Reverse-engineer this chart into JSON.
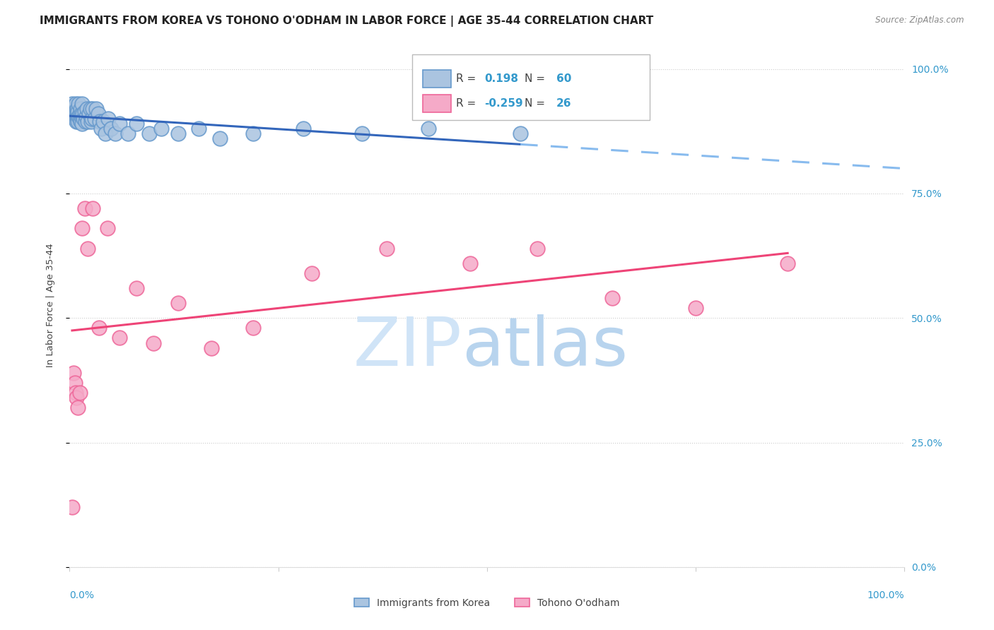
{
  "title": "IMMIGRANTS FROM KOREA VS TOHONO O'ODHAM IN LABOR FORCE | AGE 35-44 CORRELATION CHART",
  "source": "Source: ZipAtlas.com",
  "ylabel": "In Labor Force | Age 35-44",
  "xlim": [
    0.0,
    1.0
  ],
  "ylim": [
    0.0,
    1.05
  ],
  "ytick_values": [
    0.0,
    0.25,
    0.5,
    0.75,
    1.0
  ],
  "legend_korea_R": "0.198",
  "legend_korea_N": "60",
  "legend_tohono_R": "-0.259",
  "legend_tohono_N": "26",
  "background_color": "#ffffff",
  "grid_color": "#cccccc",
  "korea_color": "#6699cc",
  "korea_fill": "#aac4e0",
  "tohono_color": "#ee6699",
  "tohono_fill": "#f5aac8",
  "korea_line_color": "#3366bb",
  "tohono_line_color": "#ee4477",
  "dashed_line_color": "#88bbee",
  "korea_scatter_x": [
    0.003,
    0.004,
    0.005,
    0.005,
    0.006,
    0.006,
    0.007,
    0.007,
    0.008,
    0.008,
    0.009,
    0.009,
    0.01,
    0.01,
    0.01,
    0.011,
    0.011,
    0.012,
    0.012,
    0.013,
    0.013,
    0.014,
    0.014,
    0.015,
    0.015,
    0.016,
    0.017,
    0.018,
    0.019,
    0.02,
    0.021,
    0.022,
    0.023,
    0.025,
    0.026,
    0.027,
    0.028,
    0.03,
    0.032,
    0.034,
    0.036,
    0.038,
    0.04,
    0.043,
    0.046,
    0.05,
    0.055,
    0.06,
    0.07,
    0.08,
    0.095,
    0.11,
    0.13,
    0.155,
    0.18,
    0.22,
    0.28,
    0.35,
    0.43,
    0.54
  ],
  "korea_scatter_y": [
    0.93,
    0.92,
    0.91,
    0.925,
    0.915,
    0.9,
    0.91,
    0.93,
    0.895,
    0.915,
    0.905,
    0.92,
    0.9,
    0.915,
    0.895,
    0.905,
    0.93,
    0.91,
    0.9,
    0.92,
    0.895,
    0.905,
    0.91,
    0.89,
    0.93,
    0.91,
    0.9,
    0.915,
    0.895,
    0.905,
    0.92,
    0.895,
    0.91,
    0.92,
    0.895,
    0.9,
    0.92,
    0.9,
    0.92,
    0.91,
    0.895,
    0.88,
    0.895,
    0.87,
    0.9,
    0.88,
    0.87,
    0.89,
    0.87,
    0.89,
    0.87,
    0.88,
    0.87,
    0.88,
    0.86,
    0.87,
    0.88,
    0.87,
    0.88,
    0.87
  ],
  "tohono_scatter_x": [
    0.003,
    0.005,
    0.006,
    0.007,
    0.008,
    0.01,
    0.012,
    0.015,
    0.018,
    0.022,
    0.028,
    0.035,
    0.045,
    0.06,
    0.08,
    0.1,
    0.13,
    0.17,
    0.22,
    0.29,
    0.38,
    0.48,
    0.56,
    0.65,
    0.75,
    0.86
  ],
  "tohono_scatter_y": [
    0.12,
    0.39,
    0.37,
    0.35,
    0.34,
    0.32,
    0.35,
    0.68,
    0.72,
    0.64,
    0.72,
    0.48,
    0.68,
    0.46,
    0.56,
    0.45,
    0.53,
    0.44,
    0.48,
    0.59,
    0.64,
    0.61,
    0.64,
    0.54,
    0.52,
    0.61
  ]
}
